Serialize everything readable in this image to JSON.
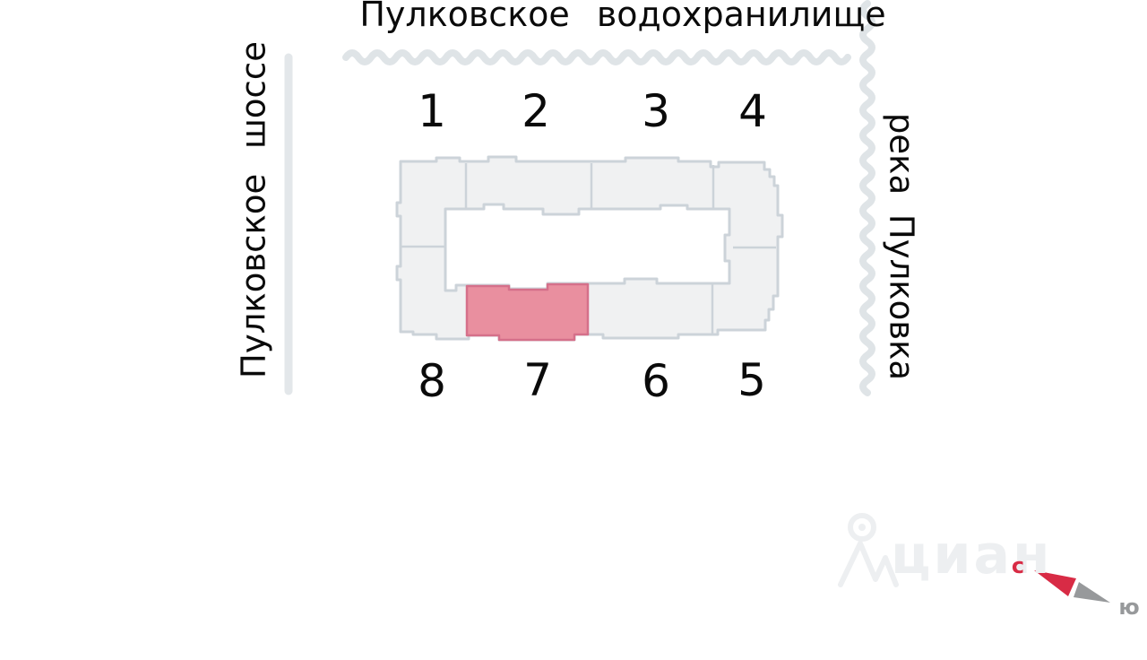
{
  "plan": {
    "top_label": "Пулковское водохранилище",
    "left_label": "Пулковское шоссе",
    "right_label": "река Пулковка",
    "sections_top": [
      "1",
      "2",
      "3",
      "4"
    ],
    "sections_bottom": [
      "8",
      "7",
      "6",
      "5"
    ],
    "highlighted_section": "7"
  },
  "compass": {
    "north_label": "с",
    "south_label": "ю"
  },
  "watermark": {
    "text": "циан"
  },
  "colors": {
    "text": "#0a0a0a",
    "water_line": "#dfe4e7",
    "road_line": "#e3e7ea",
    "building_fill": "#f0f1f2",
    "building_stroke": "#ccd3d9",
    "highlight_fill": "#e98f9f",
    "highlight_stroke": "#d5708a",
    "compass_north": "#d82b45",
    "compass_south": "#97999b",
    "watermark": "#edeff1"
  }
}
